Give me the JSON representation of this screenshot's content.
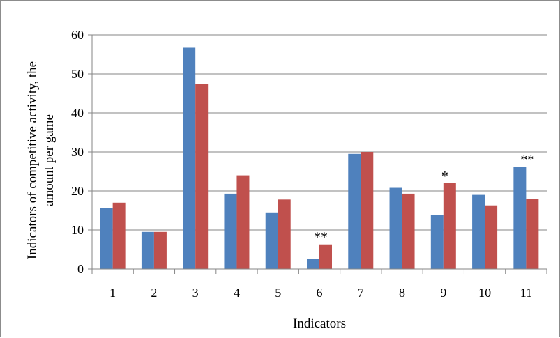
{
  "chart_data": {
    "type": "bar",
    "title": "",
    "xlabel": "Indicators",
    "ylabel_lines": [
      "Indicators of competitive activity, the",
      "amount per game"
    ],
    "categories": [
      "1",
      "2",
      "3",
      "4",
      "5",
      "6",
      "7",
      "8",
      "9",
      "10",
      "11"
    ],
    "ylim": [
      0,
      60
    ],
    "yticks": [
      "0",
      "10",
      "20",
      "30",
      "40",
      "50",
      "60"
    ],
    "grid": true,
    "legend": "none",
    "series": [
      {
        "color": "#4f81bd",
        "values": [
          15.7,
          9.5,
          56.7,
          19.3,
          14.5,
          2.5,
          29.5,
          20.8,
          13.8,
          19.0,
          26.2
        ]
      },
      {
        "color": "#c0504d",
        "values": [
          17.0,
          9.5,
          47.5,
          24.0,
          17.8,
          6.3,
          30.0,
          19.3,
          22.0,
          16.3,
          18.0
        ]
      }
    ],
    "annotations": [
      {
        "category": "6",
        "text": "**",
        "at_value": 6.3
      },
      {
        "category": "9",
        "text": "*",
        "at_value": 22.0
      },
      {
        "category": "11",
        "text": "**",
        "at_value": 26.2
      }
    ]
  }
}
